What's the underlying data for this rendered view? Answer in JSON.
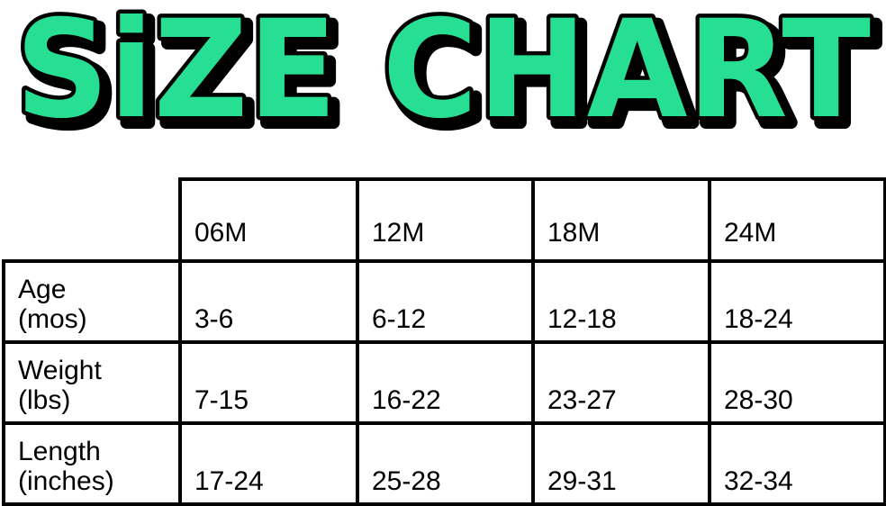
{
  "page": {
    "background": "#ffffff"
  },
  "title": {
    "text": "SiZE CHART",
    "fill": "#26DF93",
    "outline": "#000000"
  },
  "table": {
    "columns": [
      "06M",
      "12M",
      "18M",
      "24M"
    ],
    "rows": [
      {
        "label_line1": "Age",
        "label_line2": "(mos)",
        "values": [
          "3-6",
          "6-12",
          "12-18",
          "18-24"
        ]
      },
      {
        "label_line1": "Weight",
        "label_line2": "(lbs)",
        "values": [
          "7-15",
          "16-22",
          "23-27",
          "28-30"
        ]
      },
      {
        "label_line1": "Length",
        "label_line2": "(inches)",
        "values": [
          "17-24",
          "25-28",
          "29-31",
          "32-34"
        ]
      }
    ]
  },
  "chart_data": {
    "type": "table",
    "title": "SIZE CHART",
    "columns": [
      "",
      "06M",
      "12M",
      "18M",
      "24M"
    ],
    "rows": [
      [
        "Age (mos)",
        "3-6",
        "6-12",
        "12-18",
        "18-24"
      ],
      [
        "Weight (lbs)",
        "7-15",
        "16-22",
        "23-27",
        "28-30"
      ],
      [
        "Length (inches)",
        "17-24",
        "25-28",
        "29-31",
        "32-34"
      ]
    ],
    "layout": {
      "grid": true,
      "header_row": true,
      "corner_cell_blank": true
    }
  }
}
